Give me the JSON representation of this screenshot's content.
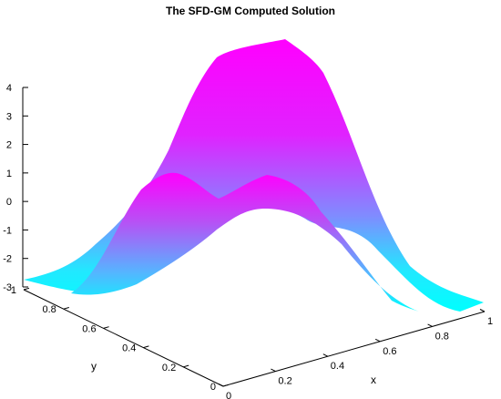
{
  "chart_data": {
    "type": "surface3d",
    "title": "The SFD-GM Computed Solution",
    "xlabel": "x",
    "ylabel": "y",
    "zlabel": "",
    "xlim": [
      0,
      1
    ],
    "ylim": [
      0,
      1
    ],
    "zlim": [
      -3,
      4
    ],
    "x_ticks": [
      "0",
      "0.2",
      "0.4",
      "0.6",
      "0.8",
      "1"
    ],
    "y_ticks": [
      "0",
      "0.2",
      "0.4",
      "0.6",
      "0.8",
      "1"
    ],
    "z_ticks": [
      "4",
      "3",
      "2",
      "1",
      "0",
      "-1",
      "-2",
      "-3"
    ],
    "colormap": {
      "low": "#00ffff",
      "high": "#ff00ff"
    },
    "surfaces": [
      {
        "peak_x": 0.5,
        "peak_y": 0.5,
        "peak_z": 4,
        "base_z": -3,
        "features": "single central hump"
      },
      {
        "peak_x": 0.5,
        "peak_y": 0.5,
        "peak_z": 1.2,
        "base_z": -3,
        "features": "twin crests with central dip near x = 0.5"
      }
    ]
  }
}
